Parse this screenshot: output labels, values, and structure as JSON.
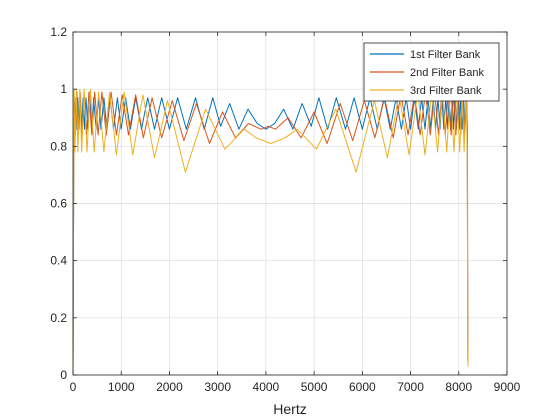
{
  "chart_data": {
    "type": "line",
    "title": "",
    "xlabel": "Hertz",
    "ylabel": "",
    "xlim": [
      0,
      9000
    ],
    "ylim": [
      0,
      1.2
    ],
    "xticks": [
      0,
      1000,
      2000,
      3000,
      4000,
      5000,
      6000,
      7000,
      8000,
      9000
    ],
    "yticks": [
      0,
      0.2,
      0.4,
      0.6,
      0.8,
      1,
      1.2
    ],
    "grid": true,
    "legend_position": "top-right",
    "series": [
      {
        "name": "1st Filter Bank",
        "color": "#0072BD",
        "points": [
          [
            0,
            0
          ],
          [
            20,
            0.97
          ],
          [
            40,
            0.86
          ],
          [
            60,
            0.97
          ],
          [
            80,
            0.86
          ],
          [
            100,
            0.97
          ],
          [
            125,
            0.86
          ],
          [
            150,
            0.97
          ],
          [
            180,
            0.86
          ],
          [
            210,
            0.97
          ],
          [
            240,
            0.86
          ],
          [
            270,
            0.97
          ],
          [
            310,
            0.86
          ],
          [
            350,
            0.97
          ],
          [
            390,
            0.86
          ],
          [
            430,
            0.97
          ],
          [
            480,
            0.86
          ],
          [
            530,
            0.97
          ],
          [
            580,
            0.86
          ],
          [
            640,
            0.97
          ],
          [
            700,
            0.86
          ],
          [
            770,
            0.97
          ],
          [
            840,
            0.86
          ],
          [
            920,
            0.97
          ],
          [
            1000,
            0.86
          ],
          [
            1090,
            0.97
          ],
          [
            1190,
            0.86
          ],
          [
            1300,
            0.97
          ],
          [
            1420,
            0.86
          ],
          [
            1550,
            0.97
          ],
          [
            1690,
            0.86
          ],
          [
            1840,
            0.97
          ],
          [
            2000,
            0.86
          ],
          [
            2170,
            0.97
          ],
          [
            2350,
            0.86
          ],
          [
            2540,
            0.97
          ],
          [
            2720,
            0.86
          ],
          [
            2900,
            0.97
          ],
          [
            3060,
            0.87
          ],
          [
            3250,
            0.95
          ],
          [
            3440,
            0.86
          ],
          [
            3630,
            0.93
          ],
          [
            3820,
            0.88
          ],
          [
            4000,
            0.86
          ],
          [
            4180,
            0.88
          ],
          [
            4370,
            0.93
          ],
          [
            4560,
            0.86
          ],
          [
            4750,
            0.95
          ],
          [
            4940,
            0.87
          ],
          [
            5100,
            0.97
          ],
          [
            5280,
            0.86
          ],
          [
            5460,
            0.97
          ],
          [
            5650,
            0.86
          ],
          [
            5830,
            0.97
          ],
          [
            6000,
            0.86
          ],
          [
            6160,
            0.97
          ],
          [
            6310,
            0.86
          ],
          [
            6450,
            0.97
          ],
          [
            6580,
            0.86
          ],
          [
            6700,
            0.97
          ],
          [
            6810,
            0.86
          ],
          [
            6910,
            0.97
          ],
          [
            7000,
            0.86
          ],
          [
            7080,
            0.97
          ],
          [
            7160,
            0.86
          ],
          [
            7230,
            0.97
          ],
          [
            7300,
            0.86
          ],
          [
            7360,
            0.97
          ],
          [
            7420,
            0.86
          ],
          [
            7470,
            0.97
          ],
          [
            7520,
            0.86
          ],
          [
            7570,
            0.97
          ],
          [
            7610,
            0.86
          ],
          [
            7650,
            0.97
          ],
          [
            7690,
            0.86
          ],
          [
            7730,
            0.97
          ],
          [
            7770,
            0.86
          ],
          [
            7800,
            0.97
          ],
          [
            7830,
            0.86
          ],
          [
            7860,
            0.97
          ],
          [
            7890,
            0.86
          ],
          [
            7920,
            0.97
          ],
          [
            7950,
            0.86
          ],
          [
            7980,
            0.97
          ],
          [
            8010,
            0.86
          ],
          [
            8040,
            0.97
          ],
          [
            8070,
            0.86
          ],
          [
            8100,
            0.97
          ],
          [
            8130,
            0.86
          ],
          [
            8160,
            0.97
          ],
          [
            8175,
            0.86
          ],
          [
            8185,
            0.2
          ],
          [
            8190,
            0.05
          ]
        ]
      },
      {
        "name": "2nd Filter Bank",
        "color": "#D95319",
        "points": [
          [
            0,
            0
          ],
          [
            20,
            0.99
          ],
          [
            50,
            0.84
          ],
          [
            80,
            0.99
          ],
          [
            110,
            0.84
          ],
          [
            150,
            0.99
          ],
          [
            190,
            0.84
          ],
          [
            230,
            0.99
          ],
          [
            280,
            0.84
          ],
          [
            330,
            0.99
          ],
          [
            390,
            0.84
          ],
          [
            450,
            0.99
          ],
          [
            520,
            0.84
          ],
          [
            600,
            0.99
          ],
          [
            690,
            0.84
          ],
          [
            790,
            0.99
          ],
          [
            900,
            0.84
          ],
          [
            1020,
            0.98
          ],
          [
            1150,
            0.84
          ],
          [
            1300,
            0.98
          ],
          [
            1460,
            0.83
          ],
          [
            1640,
            0.97
          ],
          [
            1840,
            0.83
          ],
          [
            2060,
            0.96
          ],
          [
            2300,
            0.82
          ],
          [
            2560,
            0.95
          ],
          [
            2830,
            0.81
          ],
          [
            3100,
            0.92
          ],
          [
            3370,
            0.83
          ],
          [
            3640,
            0.88
          ],
          [
            3900,
            0.86
          ],
          [
            4050,
            0.87
          ],
          [
            4200,
            0.86
          ],
          [
            4460,
            0.9
          ],
          [
            4730,
            0.83
          ],
          [
            5000,
            0.92
          ],
          [
            5270,
            0.81
          ],
          [
            5540,
            0.95
          ],
          [
            5800,
            0.82
          ],
          [
            6040,
            0.96
          ],
          [
            6260,
            0.83
          ],
          [
            6460,
            0.97
          ],
          [
            6640,
            0.83
          ],
          [
            6800,
            0.98
          ],
          [
            6950,
            0.84
          ],
          [
            7080,
            0.98
          ],
          [
            7200,
            0.84
          ],
          [
            7310,
            0.99
          ],
          [
            7410,
            0.84
          ],
          [
            7500,
            0.99
          ],
          [
            7580,
            0.84
          ],
          [
            7650,
            0.99
          ],
          [
            7720,
            0.84
          ],
          [
            7780,
            0.99
          ],
          [
            7840,
            0.84
          ],
          [
            7890,
            0.99
          ],
          [
            7940,
            0.84
          ],
          [
            7990,
            0.99
          ],
          [
            8040,
            0.84
          ],
          [
            8080,
            0.99
          ],
          [
            8120,
            0.84
          ],
          [
            8160,
            0.99
          ],
          [
            8180,
            0.84
          ],
          [
            8188,
            0.15
          ],
          [
            8192,
            0.04
          ]
        ]
      },
      {
        "name": "3rd Filter Bank",
        "color": "#EDB120",
        "points": [
          [
            0,
            0
          ],
          [
            20,
            1.0
          ],
          [
            40,
            0.78
          ],
          [
            70,
            1.0
          ],
          [
            100,
            0.78
          ],
          [
            140,
            1.0
          ],
          [
            180,
            0.78
          ],
          [
            230,
            1.0
          ],
          [
            290,
            0.78
          ],
          [
            360,
            1.0
          ],
          [
            440,
            0.78
          ],
          [
            530,
            0.99
          ],
          [
            640,
            0.78
          ],
          [
            760,
            0.99
          ],
          [
            900,
            0.77
          ],
          [
            1060,
            0.99
          ],
          [
            1240,
            0.77
          ],
          [
            1450,
            0.98
          ],
          [
            1690,
            0.76
          ],
          [
            1960,
            0.96
          ],
          [
            2330,
            0.71
          ],
          [
            2750,
            0.93
          ],
          [
            3150,
            0.79
          ],
          [
            3550,
            0.86
          ],
          [
            3800,
            0.83
          ],
          [
            4100,
            0.81
          ],
          [
            4400,
            0.83
          ],
          [
            4650,
            0.86
          ],
          [
            5050,
            0.79
          ],
          [
            5450,
            0.93
          ],
          [
            5870,
            0.71
          ],
          [
            6250,
            0.96
          ],
          [
            6520,
            0.76
          ],
          [
            6760,
            0.98
          ],
          [
            6970,
            0.77
          ],
          [
            7150,
            0.99
          ],
          [
            7300,
            0.77
          ],
          [
            7440,
            0.99
          ],
          [
            7560,
            0.78
          ],
          [
            7660,
            0.99
          ],
          [
            7750,
            0.78
          ],
          [
            7830,
            1.0
          ],
          [
            7900,
            0.78
          ],
          [
            7960,
            1.0
          ],
          [
            8020,
            0.78
          ],
          [
            8070,
            1.0
          ],
          [
            8110,
            0.78
          ],
          [
            8150,
            1.0
          ],
          [
            8175,
            0.78
          ],
          [
            8185,
            0.18
          ],
          [
            8192,
            0.03
          ]
        ]
      }
    ]
  }
}
